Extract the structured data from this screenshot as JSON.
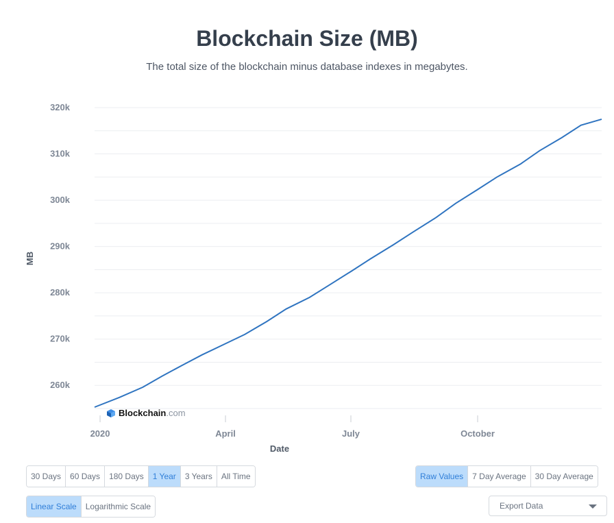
{
  "chart_data": {
    "type": "line",
    "title": "Blockchain Size (MB)",
    "subtitle": "The total size of the blockchain minus database indexes in megabytes.",
    "xlabel": "Date",
    "ylabel": "MB",
    "x_ticks": [
      {
        "label": "2020",
        "date": "2020-01-01"
      },
      {
        "label": "April",
        "date": "2020-04-01"
      },
      {
        "label": "July",
        "date": "2020-07-01"
      },
      {
        "label": "October",
        "date": "2020-10-01"
      }
    ],
    "y_ticks": [
      {
        "label": "260k",
        "value": 260000
      },
      {
        "label": "270k",
        "value": 270000
      },
      {
        "label": "280k",
        "value": 280000
      },
      {
        "label": "290k",
        "value": 290000
      },
      {
        "label": "300k",
        "value": 300000
      },
      {
        "label": "310k",
        "value": 310000
      },
      {
        "label": "320k",
        "value": 320000
      }
    ],
    "xlim": [
      "2019-12-28",
      "2020-12-30"
    ],
    "ylim": [
      255000,
      320000
    ],
    "grid": true,
    "legend": "none",
    "series": [
      {
        "color": "#2f74c0",
        "points": [
          {
            "x": "2019-12-28",
            "y": 255300
          },
          {
            "x": "2020-01-15",
            "y": 257400
          },
          {
            "x": "2020-02-01",
            "y": 259600
          },
          {
            "x": "2020-02-15",
            "y": 262000
          },
          {
            "x": "2020-03-01",
            "y": 264400
          },
          {
            "x": "2020-03-15",
            "y": 266600
          },
          {
            "x": "2020-04-01",
            "y": 269000
          },
          {
            "x": "2020-04-15",
            "y": 271000
          },
          {
            "x": "2020-05-01",
            "y": 273800
          },
          {
            "x": "2020-05-15",
            "y": 276500
          },
          {
            "x": "2020-06-01",
            "y": 279000
          },
          {
            "x": "2020-06-15",
            "y": 281600
          },
          {
            "x": "2020-07-01",
            "y": 284600
          },
          {
            "x": "2020-07-15",
            "y": 287300
          },
          {
            "x": "2020-08-01",
            "y": 290400
          },
          {
            "x": "2020-08-15",
            "y": 293100
          },
          {
            "x": "2020-09-01",
            "y": 296300
          },
          {
            "x": "2020-09-15",
            "y": 299300
          },
          {
            "x": "2020-10-01",
            "y": 302300
          },
          {
            "x": "2020-10-15",
            "y": 305000
          },
          {
            "x": "2020-11-01",
            "y": 307800
          },
          {
            "x": "2020-11-15",
            "y": 310700
          },
          {
            "x": "2020-12-01",
            "y": 313500
          },
          {
            "x": "2020-12-15",
            "y": 316200
          },
          {
            "x": "2020-12-30",
            "y": 317500
          }
        ]
      }
    ],
    "colors": {
      "line": "#2f74c0",
      "grid": "#ebedf0",
      "tick_label": "#7e8795",
      "active_button": "#bcdcfb"
    }
  },
  "watermark": {
    "brand": "Blockchain",
    "suffix": ".com",
    "icon": "blockchain-cube-icon"
  },
  "controls": {
    "time_range": [
      "30 Days",
      "60 Days",
      "180 Days",
      "1 Year",
      "3 Years",
      "All Time"
    ],
    "time_range_active": "1 Year",
    "value_mode": [
      "Raw Values",
      "7 Day Average",
      "30 Day Average"
    ],
    "value_mode_active": "Raw Values",
    "scale": [
      "Linear Scale",
      "Logarithmic Scale"
    ],
    "scale_active": "Linear Scale",
    "export_label": "Export Data",
    "export_icon": "chevron-down-icon"
  }
}
